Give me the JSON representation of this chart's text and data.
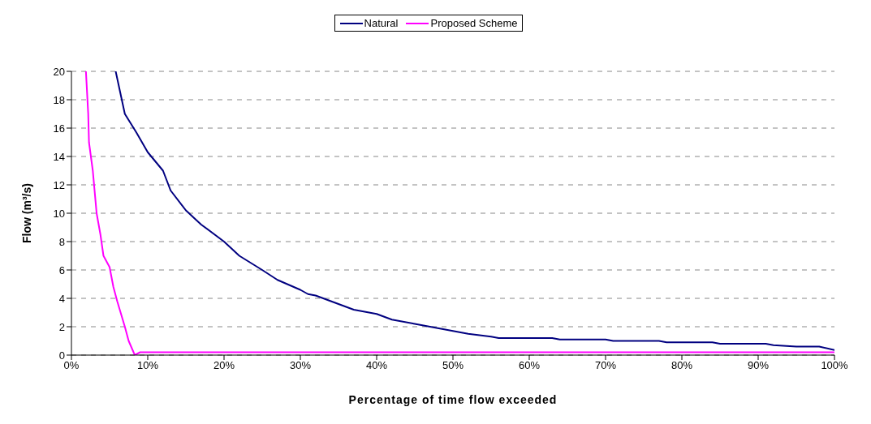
{
  "chart_data": {
    "type": "line",
    "xlabel": "Percentage of time flow exceeded",
    "ylabel": "Flow (m³/s)",
    "xlim": [
      0,
      100
    ],
    "xticks": [
      {
        "value": 0,
        "label": "0%"
      },
      {
        "value": 10,
        "label": "10%"
      },
      {
        "value": 20,
        "label": "20%"
      },
      {
        "value": 30,
        "label": "30%"
      },
      {
        "value": 40,
        "label": "40%"
      },
      {
        "value": 50,
        "label": "50%"
      },
      {
        "value": 60,
        "label": "60%"
      },
      {
        "value": 70,
        "label": "70%"
      },
      {
        "value": 80,
        "label": "80%"
      },
      {
        "value": 90,
        "label": "90%"
      },
      {
        "value": 100,
        "label": "100%"
      }
    ],
    "ylim": [
      0,
      20
    ],
    "yticks": [
      0,
      2,
      4,
      6,
      8,
      10,
      12,
      14,
      16,
      18,
      20
    ],
    "grid": "y",
    "legend": "top",
    "marker": "none",
    "line_style": "solid",
    "series": [
      {
        "name": "Natural",
        "color": "#000080",
        "x": [
          5.8,
          7,
          8.5,
          10,
          12,
          13,
          15,
          17,
          20,
          22,
          25,
          27,
          30,
          31,
          32,
          34,
          37,
          40,
          42,
          45,
          50,
          52,
          55,
          56,
          63,
          64,
          70,
          71,
          77,
          78,
          84,
          85,
          91,
          92,
          95,
          98,
          100
        ],
        "values": [
          20,
          17,
          15.7,
          14.3,
          13,
          11.6,
          10.2,
          9.2,
          8,
          7,
          6,
          5.3,
          4.6,
          4.3,
          4.2,
          3.8,
          3.2,
          2.9,
          2.5,
          2.2,
          1.7,
          1.5,
          1.3,
          1.2,
          1.2,
          1.1,
          1.1,
          1.0,
          1.0,
          0.9,
          0.9,
          0.8,
          0.8,
          0.7,
          0.6,
          0.6,
          0.35
        ]
      },
      {
        "name": "Proposed Scheme",
        "color": "#ff00ff",
        "x": [
          1.9,
          2.2,
          2.3,
          2.8,
          3.3,
          3.8,
          4.2,
          5,
          5.5,
          6,
          7,
          7.5,
          8.3,
          9,
          100
        ],
        "values": [
          20,
          17,
          15,
          13,
          10,
          8.5,
          7,
          6.2,
          4.8,
          3.8,
          2,
          1,
          0,
          0.2,
          0.2
        ]
      }
    ]
  }
}
